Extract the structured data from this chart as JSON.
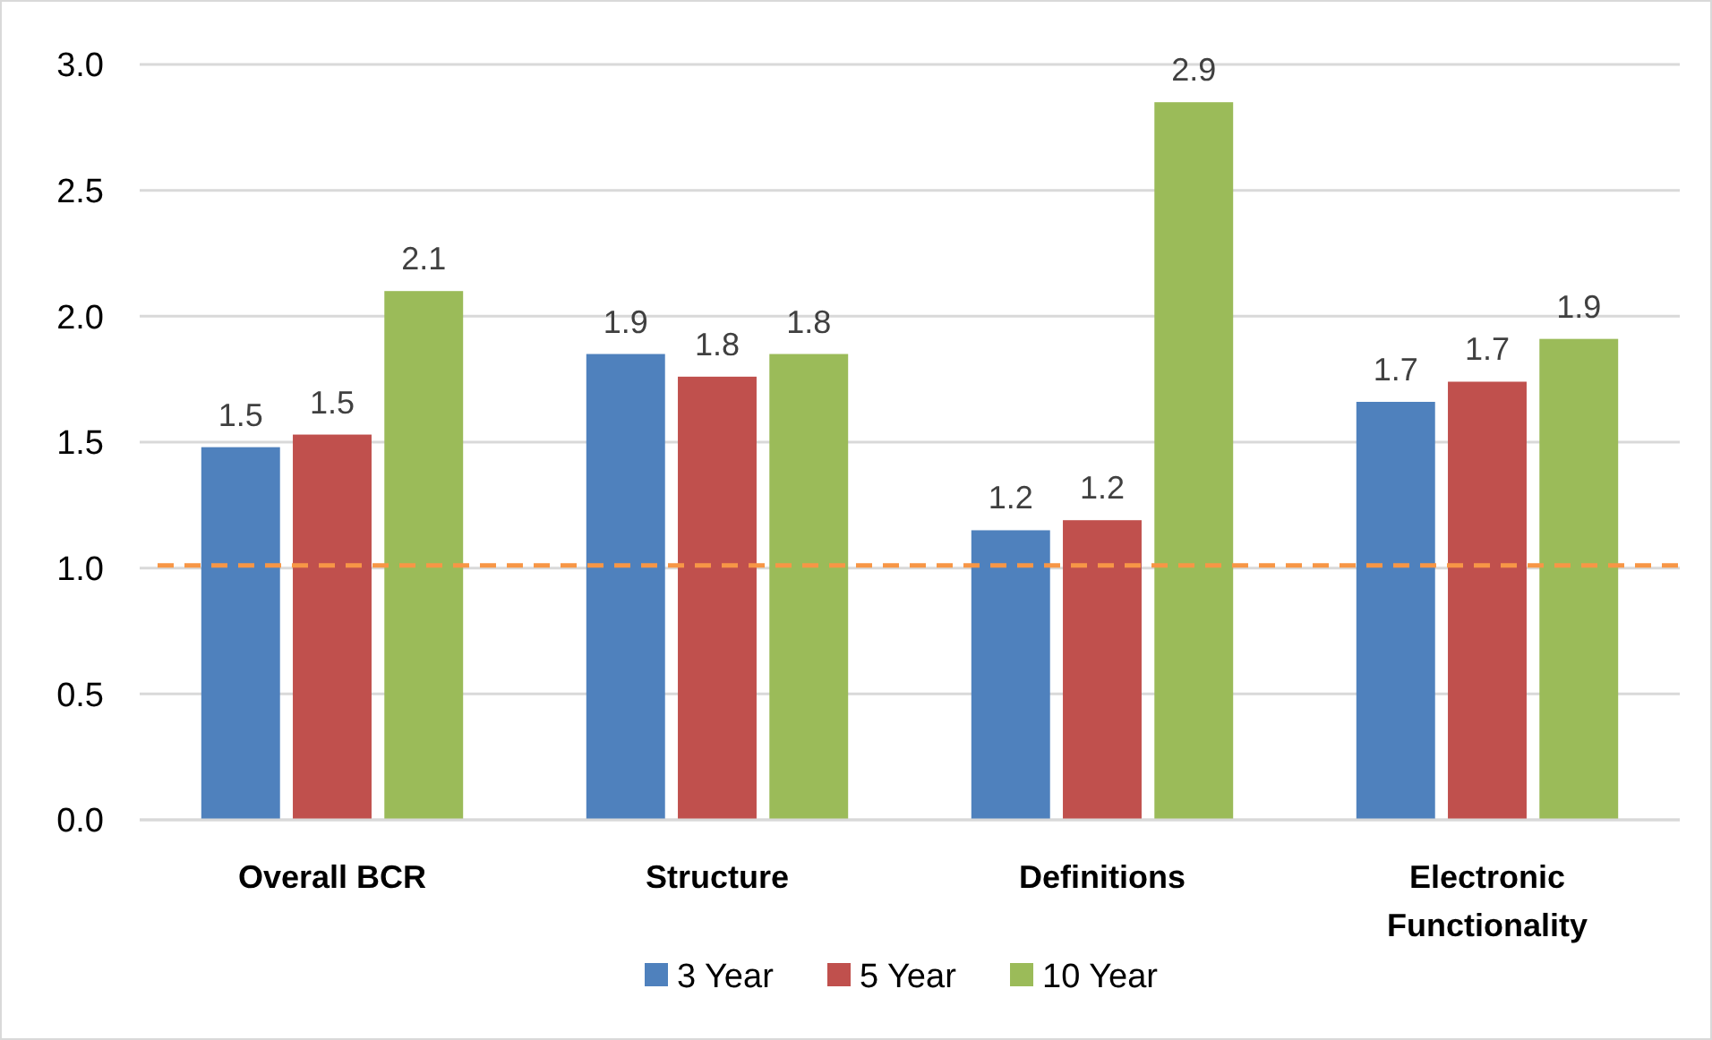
{
  "chart_data": {
    "type": "bar",
    "categories": [
      "Overall BCR",
      "Structure",
      "Definitions",
      "Electronic Functionality"
    ],
    "series": [
      {
        "name": "3 Year",
        "color": "#4f81bd",
        "values": [
          1.48,
          1.85,
          1.15,
          1.66
        ],
        "value_labels": [
          "1.5",
          "1.9",
          "1.2",
          "1.7"
        ]
      },
      {
        "name": "5 Year",
        "color": "#c0504d",
        "values": [
          1.53,
          1.76,
          1.19,
          1.74
        ],
        "value_labels": [
          "1.5",
          "1.8",
          "1.2",
          "1.7"
        ]
      },
      {
        "name": "10 Year",
        "color": "#9bbb59",
        "values": [
          2.1,
          1.85,
          2.85,
          1.91
        ],
        "value_labels": [
          "2.1",
          "1.8",
          "2.9",
          "1.9"
        ]
      }
    ],
    "ylim": [
      0,
      3
    ],
    "yticks": [
      {
        "value": 0,
        "label": "0.0"
      },
      0.5,
      {
        "value": 1,
        "label": "1.0"
      },
      1.5,
      {
        "value": 2,
        "label": "2.0"
      },
      2.5,
      {
        "value": 3,
        "label": "3.0"
      }
    ],
    "grid": "y",
    "legend": "bottom",
    "ref_lines": [
      {
        "axis": "y",
        "value": 1.01,
        "color": "#f79646",
        "line_style": "dashed"
      }
    ]
  }
}
